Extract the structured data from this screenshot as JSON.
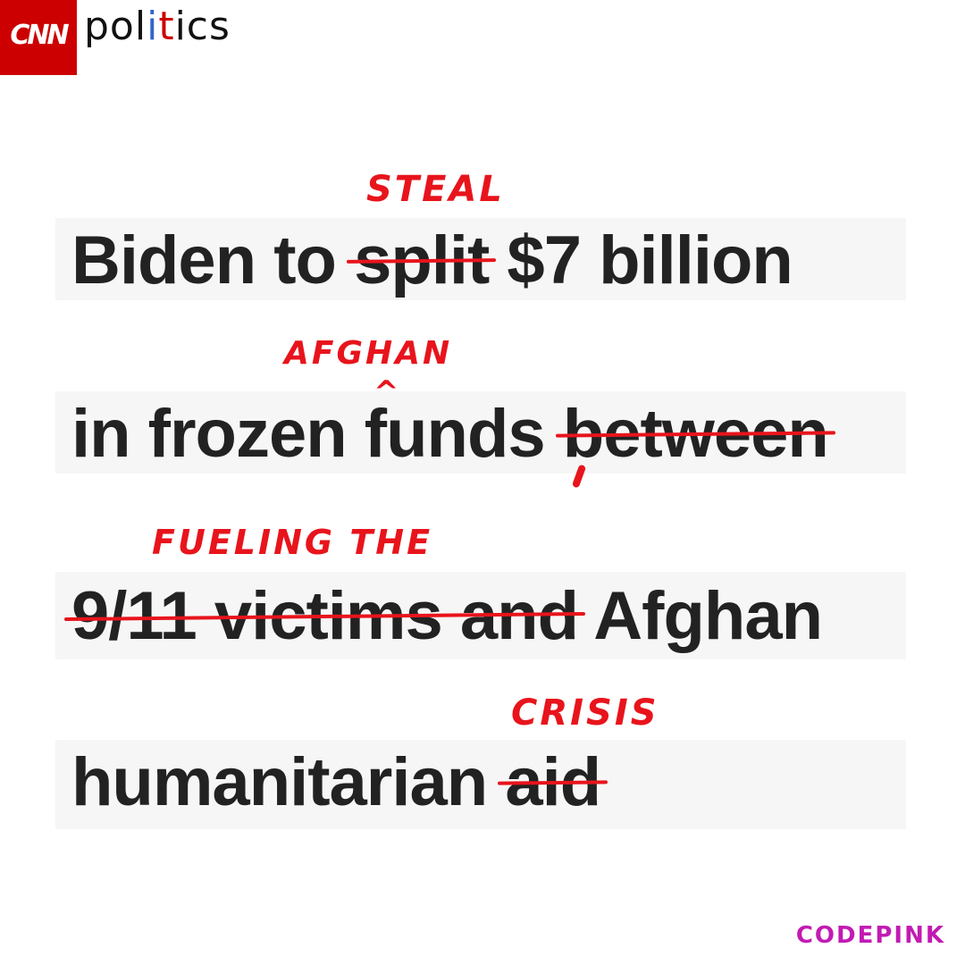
{
  "brand": {
    "logo_text": "CNN",
    "section": "politics",
    "section_parts": [
      "pol",
      "i",
      "t",
      "ics"
    ]
  },
  "headline": {
    "line1": {
      "before": "Biden to ",
      "struck": "split",
      "after": " $7 billion"
    },
    "line2": {
      "before": "in frozen ",
      "main": "funds",
      "after": " ",
      "struck": "between"
    },
    "line3": {
      "struck": "9/11 victims and",
      "after": " Afghan"
    },
    "line4": {
      "before": "humanitarian ",
      "struck": "aid"
    }
  },
  "annotations": {
    "steal": "STEAL",
    "afghan": "AFGHAN",
    "caret": "^",
    "fueling": "FUELING THE",
    "crisis": "CRISIS"
  },
  "footer": {
    "org_left": "CODE",
    "org_right": "PINK"
  },
  "colors": {
    "cnn_red": "#cc0000",
    "annotation_red": "#e8141c",
    "codepink": "#c21bb3",
    "text": "#222222"
  }
}
